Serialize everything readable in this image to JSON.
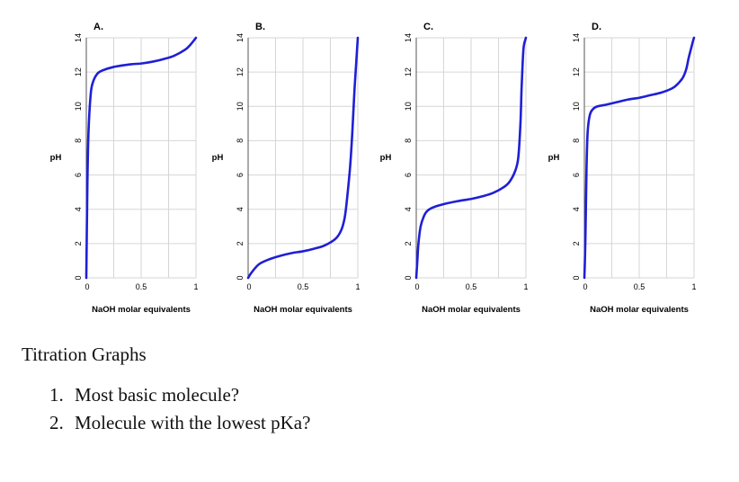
{
  "colors": {
    "curve": "#1f1fd6",
    "grid": "#d6d6d6",
    "frame": "#555555"
  },
  "chart_data": [
    {
      "type": "line",
      "title": "A.",
      "xlabel": "NaOH molar equivalents",
      "ylabel": "pH",
      "xlim": [
        0,
        1
      ],
      "ylim": [
        0,
        14
      ],
      "xticks": [
        "0",
        "0.5",
        "1"
      ],
      "yticks": [
        "0",
        "2",
        "4",
        "6",
        "8",
        "10",
        "12",
        "14"
      ],
      "grid": true,
      "series": [
        {
          "x": [
            0,
            0.01,
            0.02,
            0.04,
            0.06,
            0.1,
            0.15,
            0.25,
            0.4,
            0.5,
            0.6,
            0.7,
            0.8,
            0.9,
            0.95,
            1.0
          ],
          "y": [
            0,
            5.5,
            8.5,
            10.7,
            11.4,
            11.9,
            12.1,
            12.3,
            12.45,
            12.5,
            12.6,
            12.75,
            12.95,
            13.3,
            13.6,
            14.0
          ]
        }
      ]
    },
    {
      "type": "line",
      "title": "B.",
      "xlabel": "NaOH molar equivalents",
      "ylabel": "pH",
      "xlim": [
        0,
        1
      ],
      "ylim": [
        0,
        14
      ],
      "xticks": [
        "0",
        "0.5",
        "1"
      ],
      "yticks": [
        "0",
        "2",
        "4",
        "6",
        "8",
        "10",
        "12",
        "14"
      ],
      "grid": true,
      "series": [
        {
          "x": [
            0,
            0.03,
            0.1,
            0.2,
            0.3,
            0.4,
            0.5,
            0.6,
            0.7,
            0.8,
            0.85,
            0.88,
            0.9,
            0.93,
            0.95,
            0.97,
            0.99,
            1.0
          ],
          "y": [
            0,
            0.3,
            0.8,
            1.1,
            1.3,
            1.45,
            1.55,
            1.7,
            1.9,
            2.3,
            2.8,
            3.5,
            4.5,
            6.5,
            8.5,
            11.0,
            13.0,
            14.0
          ]
        }
      ]
    },
    {
      "type": "line",
      "title": "C.",
      "xlabel": "NaOH molar equivalents",
      "ylabel": "pH",
      "xlim": [
        0,
        1
      ],
      "ylim": [
        0,
        14
      ],
      "xticks": [
        "0",
        "0.5",
        "1"
      ],
      "yticks": [
        "0",
        "2",
        "4",
        "6",
        "8",
        "10",
        "12",
        "14"
      ],
      "grid": true,
      "series": [
        {
          "x": [
            0,
            0.01,
            0.02,
            0.04,
            0.07,
            0.1,
            0.15,
            0.25,
            0.4,
            0.5,
            0.6,
            0.7,
            0.8,
            0.85,
            0.9,
            0.93,
            0.95,
            0.96,
            0.97,
            0.98,
            1.0
          ],
          "y": [
            0,
            1.0,
            2.0,
            3.0,
            3.6,
            3.9,
            4.1,
            4.3,
            4.5,
            4.6,
            4.75,
            4.95,
            5.3,
            5.6,
            6.2,
            7.0,
            9.0,
            11.0,
            12.5,
            13.5,
            14.0
          ]
        }
      ]
    },
    {
      "type": "line",
      "title": "D.",
      "xlabel": "NaOH molar equivalents",
      "ylabel": "pH",
      "xlim": [
        0,
        1
      ],
      "ylim": [
        0,
        14
      ],
      "xticks": [
        "0",
        "0.5",
        "1"
      ],
      "yticks": [
        "0",
        "2",
        "4",
        "6",
        "8",
        "10",
        "12",
        "14"
      ],
      "grid": true,
      "series": [
        {
          "x": [
            0,
            0.005,
            0.01,
            0.015,
            0.02,
            0.03,
            0.05,
            0.08,
            0.12,
            0.2,
            0.3,
            0.4,
            0.5,
            0.6,
            0.7,
            0.8,
            0.85,
            0.9,
            0.93,
            0.95,
            0.97,
            0.99,
            1.0
          ],
          "y": [
            0,
            1.0,
            2.5,
            4.5,
            6.5,
            8.5,
            9.5,
            9.85,
            10.0,
            10.1,
            10.25,
            10.4,
            10.5,
            10.65,
            10.8,
            11.05,
            11.3,
            11.7,
            12.2,
            12.8,
            13.3,
            13.8,
            14.0
          ]
        }
      ]
    }
  ],
  "document": {
    "title": "Titration Graphs",
    "questions": [
      {
        "number": "1.",
        "text": "Most basic molecule?"
      },
      {
        "number": "2.",
        "text": "Molecule with the lowest pKa?"
      }
    ]
  }
}
